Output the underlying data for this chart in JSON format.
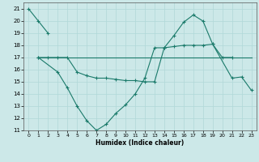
{
  "xlabel": "Humidex (Indice chaleur)",
  "x_values": [
    0,
    1,
    2,
    3,
    4,
    5,
    6,
    7,
    8,
    9,
    10,
    11,
    12,
    13,
    14,
    15,
    16,
    17,
    18,
    19,
    20,
    21,
    22,
    23
  ],
  "line1_x": [
    0,
    1,
    2
  ],
  "line1_y": [
    21,
    20,
    19
  ],
  "line2_x": [
    1,
    3,
    4,
    5,
    6,
    7,
    8,
    9,
    10,
    11,
    12,
    13,
    14,
    15,
    16,
    17,
    18,
    19,
    21,
    22,
    23
  ],
  "line2_y": [
    17,
    15.8,
    14.5,
    13,
    11.8,
    11,
    11.5,
    12.4,
    13.1,
    14,
    15.3,
    17.8,
    17.8,
    18.8,
    19.9,
    20.5,
    20,
    18.1,
    15.3,
    15.4,
    14.3
  ],
  "line3_x": [
    1,
    2,
    3,
    4,
    5,
    6,
    7,
    8,
    9,
    10,
    11,
    12,
    13,
    14,
    15,
    16,
    17,
    18,
    19,
    20,
    21
  ],
  "line3_y": [
    17,
    17,
    17,
    17,
    15.8,
    15.5,
    15.3,
    15.3,
    15.2,
    15.1,
    15.1,
    15.0,
    15.0,
    17.8,
    17.9,
    18.0,
    18.0,
    18.0,
    18.1,
    17.0,
    17.0
  ],
  "line4_x": [
    1,
    23
  ],
  "line4_y": [
    17,
    17
  ],
  "ylim": [
    11,
    21.5
  ],
  "xlim": [
    -0.5,
    23.5
  ],
  "yticks": [
    11,
    12,
    13,
    14,
    15,
    16,
    17,
    18,
    19,
    20,
    21
  ],
  "xticks": [
    0,
    1,
    2,
    3,
    4,
    5,
    6,
    7,
    8,
    9,
    10,
    11,
    12,
    13,
    14,
    15,
    16,
    17,
    18,
    19,
    20,
    21,
    22,
    23
  ],
  "line_color": "#1a7a6a",
  "bg_color": "#cce8e8",
  "grid_color": "#b0d8d8"
}
